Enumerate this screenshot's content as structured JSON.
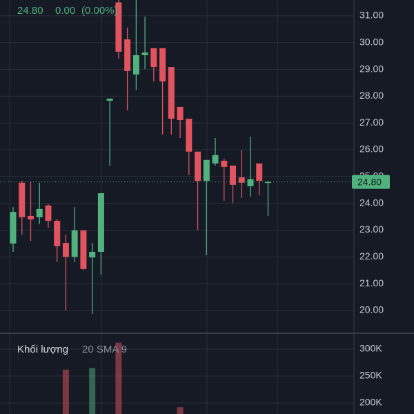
{
  "chart_data": {
    "type": "candlestick",
    "header": {
      "price": "24.80",
      "change": "0.00",
      "percent": "(0.00%)"
    },
    "up_color": "#4fb27f",
    "down_color": "#e0535f",
    "open": [
      22.5,
      24.77,
      23.53,
      23.48,
      23.92,
      23.35,
      22.52,
      22.0,
      22.99,
      21.98,
      22.19,
      27.83,
      31.5,
      30.12,
      28.81,
      29.53,
      29.79,
      29.79,
      29.09,
      27.6,
      27.16,
      25.93,
      24.84,
      25.49,
      25.59,
      25.41,
      24.97,
      24.64,
      25.49,
      24.8
    ],
    "high": [
      23.86,
      24.84,
      24.8,
      24.77,
      23.97,
      23.4,
      22.83,
      23.86,
      22.99,
      22.52,
      24.38,
      27.91,
      31.6,
      30.56,
      31.6,
      30.97,
      29.79,
      29.79,
      29.09,
      27.6,
      27.16,
      25.93,
      25.62,
      26.44,
      25.67,
      25.41,
      25.98,
      26.49,
      25.49,
      24.84
    ],
    "low": [
      22.19,
      22.83,
      22.6,
      23.22,
      23.09,
      21.81,
      20.0,
      21.81,
      21.5,
      19.87,
      21.34,
      25.4,
      29.4,
      27.47,
      28.24,
      29.01,
      28.55,
      26.57,
      26.57,
      26.44,
      25.05,
      23.01,
      22.06,
      25.41,
      24.1,
      24.02,
      24.2,
      24.25,
      24.3,
      23.53
    ],
    "close": [
      23.68,
      23.48,
      23.4,
      23.79,
      23.35,
      22.4,
      22.0,
      22.99,
      21.55,
      22.19,
      24.38,
      27.91,
      29.66,
      28.94,
      29.53,
      29.63,
      29.09,
      28.55,
      27.16,
      27.11,
      25.93,
      24.84,
      25.62,
      25.8,
      25.36,
      24.69,
      24.77,
      24.9,
      24.84,
      24.8
    ],
    "ylim": [
      19.15,
      31.59
    ],
    "yticks": [
      {
        "value": 20,
        "label": "20.00"
      },
      {
        "value": 21,
        "label": "21.00"
      },
      {
        "value": 22,
        "label": "22.00"
      },
      {
        "value": 23,
        "label": "23.00"
      },
      {
        "value": 24,
        "label": "24.00"
      },
      {
        "value": 25,
        "label": "25.00"
      },
      {
        "value": 26,
        "label": "26.00"
      },
      {
        "value": 27,
        "label": "27.00"
      },
      {
        "value": 28,
        "label": "28.00"
      },
      {
        "value": 29,
        "label": "29.00"
      },
      {
        "value": 30,
        "label": "30.00"
      },
      {
        "value": 31,
        "label": "31.00"
      }
    ],
    "last_price": {
      "value": 24.8,
      "label": "24.80"
    },
    "volume_legend": {
      "title": "Khối lượng",
      "params": "20 SMA 9"
    },
    "volume": [
      null,
      null,
      null,
      null,
      null,
      null,
      262000,
      null,
      null,
      265000,
      null,
      null,
      312000,
      null,
      null,
      null,
      null,
      null,
      null,
      192000,
      null,
      null,
      null,
      null,
      null,
      null,
      null,
      null,
      null,
      null
    ],
    "volume_ylim": [
      179500,
      329500
    ],
    "volume_yticks": [
      {
        "value": 200000,
        "label": "200K"
      },
      {
        "value": 250000,
        "label": "250K"
      },
      {
        "value": 300000,
        "label": "300K"
      }
    ]
  }
}
